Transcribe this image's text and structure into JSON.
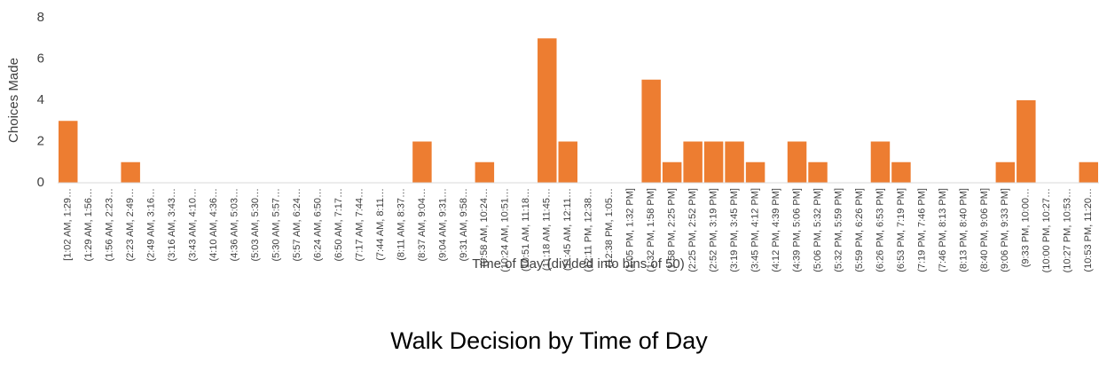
{
  "chart_data": {
    "type": "bar",
    "title": "Walk Decision by Time of Day",
    "x_label": "Time of Day (divided into bins of 50)",
    "y_label": "Choices Made",
    "color": "#ed7d31",
    "categories": [
      "[1:02 AM, 1:29…",
      "(1:29 AM, 1:56…",
      "(1:56 AM, 2:23…",
      "(2:23 AM, 2:49…",
      "(2:49 AM, 3:16…",
      "(3:16 AM, 3:43…",
      "(3:43 AM, 4:10…",
      "(4:10 AM, 4:36…",
      "(4:36 AM, 5:03…",
      "(5:03 AM, 5:30…",
      "(5:30 AM, 5:57…",
      "(5:57 AM, 6:24…",
      "(6:24 AM, 6:50…",
      "(6:50 AM, 7:17…",
      "(7:17 AM, 7:44…",
      "(7:44 AM, 8:11…",
      "(8:11 AM, 8:37…",
      "(8:37 AM, 9:04…",
      "(9:04 AM, 9:31…",
      "(9:31 AM, 9:58…",
      "(9:58 AM, 10:24…",
      "(10:24 AM, 10:51…",
      "(10:51 AM, 11:18…",
      "(11:18 AM, 11:45…",
      "(11:45 AM, 12:11…",
      "(12:11 PM, 12:38…",
      "(12:38 PM, 1:05…",
      "(1:05 PM, 1:32 PM]",
      "(1:32 PM, 1:58 PM]",
      "(1:58 PM, 2:25 PM]",
      "(2:25 PM, 2:52 PM]",
      "(2:52 PM, 3:19 PM]",
      "(3:19 PM, 3:45 PM]",
      "(3:45 PM, 4:12 PM]",
      "(4:12 PM, 4:39 PM]",
      "(4:39 PM, 5:06 PM]",
      "(5:06 PM, 5:32 PM]",
      "(5:32 PM, 5:59 PM]",
      "(5:59 PM, 6:26 PM]",
      "(6:26 PM, 6:53 PM]",
      "(6:53 PM, 7:19 PM]",
      "(7:19 PM, 7:46 PM]",
      "(7:46 PM, 8:13 PM]",
      "(8:13 PM, 8:40 PM]",
      "(8:40 PM, 9:06 PM]",
      "(9:06 PM, 9:33 PM]",
      "(9:33 PM, 10:00…",
      "(10:00 PM, 10:27…",
      "(10:27 PM, 10:53…",
      "(10:53 PM, 11:20…"
    ],
    "values": [
      3,
      0,
      0,
      1,
      0,
      0,
      0,
      0,
      0,
      0,
      0,
      0,
      0,
      0,
      0,
      0,
      0,
      2,
      0,
      0,
      1,
      0,
      0,
      7,
      2,
      0,
      0,
      0,
      5,
      1,
      2,
      2,
      2,
      1,
      0,
      2,
      1,
      0,
      0,
      2,
      1,
      0,
      0,
      0,
      0,
      1,
      4,
      0,
      0,
      1
    ],
    "ylim": [
      0,
      8
    ],
    "yticks": [
      0,
      2,
      4,
      6,
      8
    ],
    "grid": false
  }
}
